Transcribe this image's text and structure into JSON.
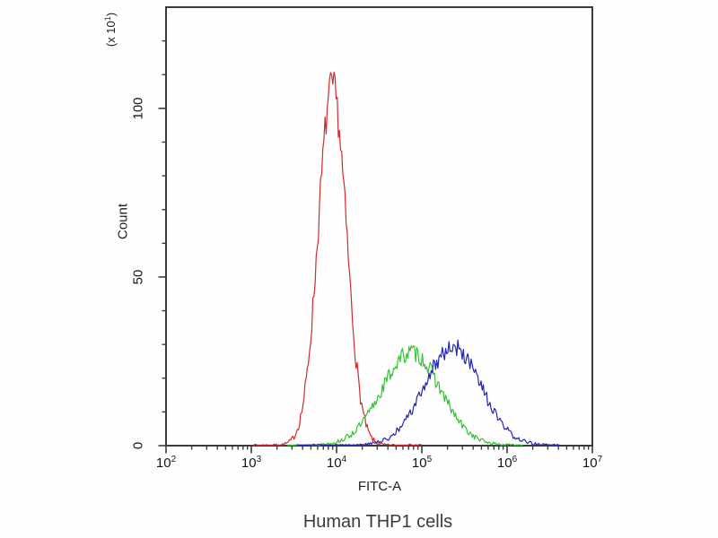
{
  "chart_data": {
    "type": "line",
    "subtype": "flow-cytometry-histogram",
    "title": "Human THP1 cells",
    "xlabel": "FITC-A",
    "ylabel": "Count",
    "y_unit": {
      "prefix": "(x 10",
      "exp": "1",
      "suffix": ")"
    },
    "x_scale": "log10",
    "x_tick_base": "10",
    "x_ticks_exponents": [
      2,
      3,
      4,
      5,
      6,
      7
    ],
    "xlim_log10": [
      2,
      7
    ],
    "ylim": [
      0,
      130
    ],
    "y_major_ticks": [
      0,
      50,
      100
    ],
    "y_minor_tick_step": 10,
    "grid": false,
    "legend": "none",
    "frame_color": "#3a3a3a",
    "background_color": "#fefefe",
    "series": [
      {
        "name": "red",
        "color": "#d22c2c",
        "peak_x": 9000,
        "peak_log10": 3.95,
        "peak_count": 106,
        "sigma_log10": 0.165,
        "range_log10": [
          3.02,
          5.0
        ],
        "noise": 0.55,
        "seed": 7
      },
      {
        "name": "green",
        "color": "#35c335",
        "peak_x": 75000,
        "peak_log10": 4.875,
        "peak_count": 27.5,
        "sigma_log10": 0.34,
        "range_log10": [
          3.42,
          6.2
        ],
        "noise": 0.5,
        "seed": 13
      },
      {
        "name": "blue",
        "color": "#2525b5",
        "peak_x": 230000,
        "peak_log10": 5.36,
        "peak_count": 29,
        "sigma_log10": 0.33,
        "range_log10": [
          3.55,
          6.62
        ],
        "noise": 0.5,
        "seed": 29
      }
    ]
  }
}
